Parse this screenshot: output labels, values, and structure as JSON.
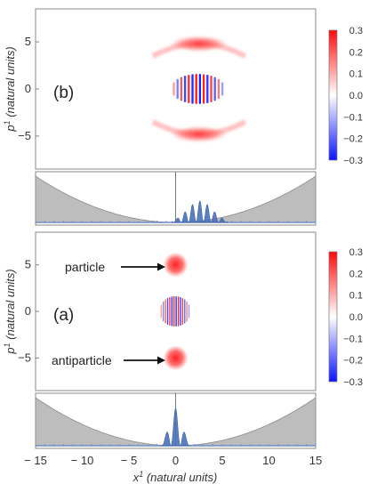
{
  "chart_data": [
    {
      "type": "heatmap",
      "panel_label": "(b)",
      "ylabel": "p",
      "ylabel_sup": "1",
      "ylabel_rest": " (natural units)",
      "x_range": [
        -15,
        15
      ],
      "ylim": [
        -8.5,
        8.5
      ],
      "yticks": [
        5,
        0,
        -5
      ],
      "colorbar": {
        "range": [
          -0.3,
          0.3
        ],
        "ticks": [
          "0.3",
          "0.2",
          "0.1",
          "0.0",
          "-0.1",
          "-0.2",
          "-0.3"
        ],
        "colors": {
          "low": "#0a14ff",
          "mid": "#ffffff",
          "high": "#ff0a0a"
        }
      },
      "features": [
        {
          "kind": "arc",
          "x": 2.5,
          "y": 4.8
        },
        {
          "kind": "oscillation",
          "x": 2.5,
          "y": 0,
          "width": 2.8
        },
        {
          "kind": "arc",
          "x": 2.5,
          "y": -4.8
        }
      ],
      "potential": {
        "type": "area",
        "x_range": [
          -15,
          15
        ],
        "shape": "parabola",
        "density_center": 2.6,
        "density_peaks": 7,
        "color": "#bdbdbd",
        "density_color": "#4a72b8"
      }
    },
    {
      "type": "heatmap",
      "panel_label": "(a)",
      "ylabel": "p",
      "ylabel_sup": "1",
      "ylabel_rest": " (natural units)",
      "xlabel": "x",
      "xlabel_sup": "1",
      "xlabel_rest": " (natural units)",
      "x_range": [
        -15,
        15
      ],
      "xticks": [
        -15,
        -10,
        -5,
        0,
        5,
        10,
        15
      ],
      "ylim": [
        -8.5,
        8.5
      ],
      "yticks": [
        5,
        0,
        -5
      ],
      "colorbar": {
        "range": [
          -0.3,
          0.3
        ],
        "ticks": [
          "0.3",
          "0.2",
          "0.1",
          "0.0",
          "-0.1",
          "-0.2",
          "-0.3"
        ],
        "colors": {
          "low": "#0a14ff",
          "mid": "#ffffff",
          "high": "#ff0a0a"
        }
      },
      "features": [
        {
          "kind": "blob",
          "x": 0,
          "y": 5
        },
        {
          "kind": "oscillation",
          "x": 0,
          "y": 0,
          "width": 1.6
        },
        {
          "kind": "blob",
          "x": 0,
          "y": -5
        }
      ],
      "annotations": [
        {
          "text": "particle",
          "target_y": 5
        },
        {
          "text": "antiparticle",
          "target_y": -5
        }
      ],
      "potential": {
        "type": "area",
        "x_range": [
          -15,
          15
        ],
        "shape": "parabola",
        "density_center": 0,
        "density_peaks": 3,
        "color": "#bdbdbd",
        "density_color": "#4a72b8"
      }
    }
  ]
}
